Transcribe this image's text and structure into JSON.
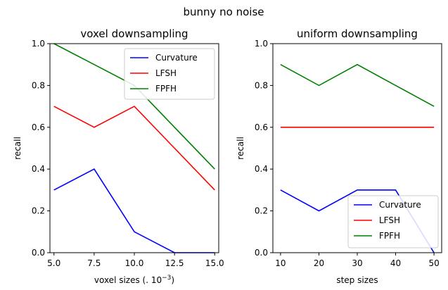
{
  "figure": {
    "suptitle": "bunny no noise"
  },
  "chart_data": [
    {
      "type": "line",
      "title": "voxel downsampling",
      "xlabel_main": "voxel sizes (. 10",
      "xlabel_sup": "−3",
      "xlabel_tail": ")",
      "ylabel": "recall",
      "x": [
        5.0,
        7.5,
        10.0,
        12.5,
        15.0
      ],
      "xticks": [
        "5.0",
        "7.5",
        "10.0",
        "12.5",
        "15.0"
      ],
      "xlim": [
        4.75,
        15.25
      ],
      "ylim": [
        0.0,
        1.0
      ],
      "yticks": [
        "0.0",
        "0.2",
        "0.4",
        "0.6",
        "0.8",
        "1.0"
      ],
      "legend_position": "upper right",
      "series": [
        {
          "name": "Curvature",
          "color": "#0000ff",
          "values": [
            0.3,
            0.4,
            0.1,
            0.0,
            0.0
          ]
        },
        {
          "name": "LFSH",
          "color": "#ff0000",
          "values": [
            0.7,
            0.6,
            0.7,
            0.5,
            0.3
          ]
        },
        {
          "name": "FPFH",
          "color": "#008000",
          "values": [
            1.0,
            0.9,
            0.8,
            0.6,
            0.4
          ]
        }
      ]
    },
    {
      "type": "line",
      "title": "uniform downsampling",
      "xlabel_main": "step sizes",
      "xlabel_sup": "",
      "xlabel_tail": "",
      "ylabel": "recall",
      "x": [
        10,
        20,
        30,
        40,
        50
      ],
      "xticks": [
        "10",
        "20",
        "30",
        "40",
        "50"
      ],
      "xlim": [
        8,
        52
      ],
      "ylim": [
        0.0,
        1.0
      ],
      "yticks": [
        "0.0",
        "0.2",
        "0.4",
        "0.6",
        "0.8",
        "1.0"
      ],
      "legend_position": "lower right",
      "series": [
        {
          "name": "Curvature",
          "color": "#0000ff",
          "values": [
            0.3,
            0.2,
            0.3,
            0.3,
            0.0
          ]
        },
        {
          "name": "LFSH",
          "color": "#ff0000",
          "values": [
            0.6,
            0.6,
            0.6,
            0.6,
            0.6
          ]
        },
        {
          "name": "FPFH",
          "color": "#008000",
          "values": [
            0.9,
            0.8,
            0.9,
            0.8,
            0.7
          ]
        }
      ]
    }
  ]
}
